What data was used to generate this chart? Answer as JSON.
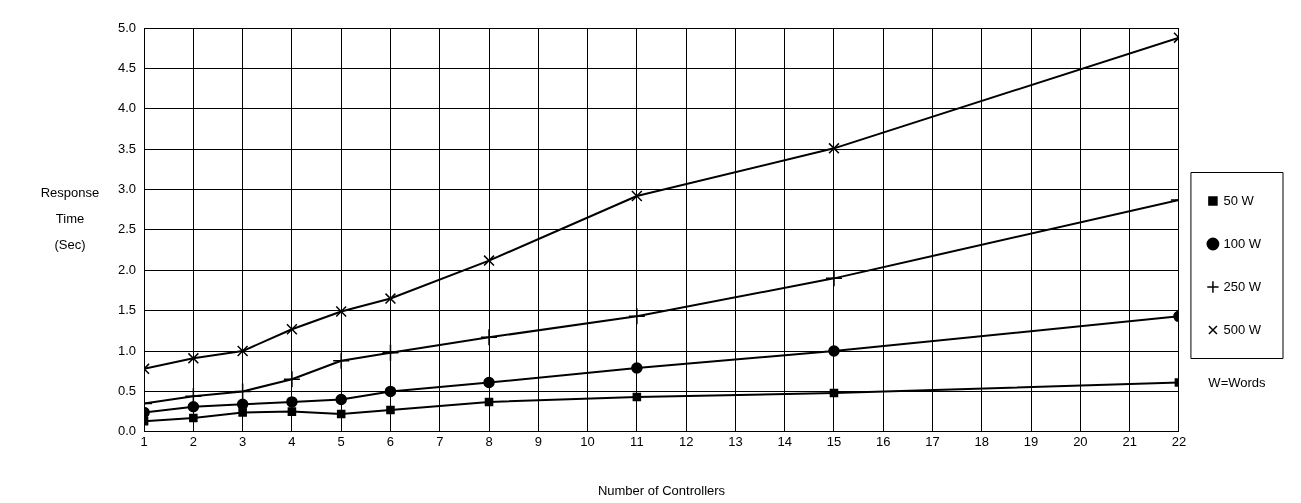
{
  "chart_data": {
    "type": "line",
    "xlabel": "Number of Controllers",
    "ylabel": "Response Time (Sec)",
    "x": [
      1,
      2,
      3,
      4,
      5,
      6,
      8,
      11,
      15,
      22
    ],
    "series": [
      {
        "name": "50 W",
        "color": "#000000",
        "marker": "square",
        "values": [
          0.13,
          0.17,
          0.24,
          0.25,
          0.22,
          0.27,
          0.37,
          0.43,
          0.48,
          0.61
        ]
      },
      {
        "name": "100 W",
        "color": "#000000",
        "marker": "circle",
        "values": [
          0.24,
          0.31,
          0.34,
          0.37,
          0.4,
          0.5,
          0.61,
          0.79,
          1.0,
          1.43
        ]
      },
      {
        "name": "250 W",
        "color": "#000000",
        "marker": "plus",
        "values": [
          0.35,
          0.44,
          0.5,
          0.65,
          0.88,
          0.98,
          1.17,
          1.43,
          1.9,
          2.87
        ]
      },
      {
        "name": "500 W",
        "color": "#000000",
        "marker": "cross",
        "values": [
          0.78,
          0.91,
          1.0,
          1.27,
          1.49,
          1.65,
          2.12,
          2.92,
          3.51,
          4.88
        ]
      }
    ],
    "xlim": [
      1,
      22
    ],
    "xticks": [
      1,
      2,
      3,
      4,
      5,
      6,
      7,
      8,
      9,
      10,
      11,
      12,
      13,
      14,
      15,
      16,
      17,
      18,
      19,
      20,
      21,
      22
    ],
    "ylim": [
      0,
      5
    ],
    "yticks": [
      {
        "value": 0,
        "label": "0.0"
      },
      {
        "value": 0.5,
        "label": "0.5"
      },
      {
        "value": 1,
        "label": "1.0"
      },
      {
        "value": 1.5,
        "label": "1.5"
      },
      {
        "value": 2,
        "label": "2.0"
      },
      {
        "value": 2.5,
        "label": "2.5"
      },
      {
        "value": 3,
        "label": "3.0"
      },
      {
        "value": 3.5,
        "label": "3.5"
      },
      {
        "value": 4,
        "label": "4.0"
      },
      {
        "value": 4.5,
        "label": "4.5"
      },
      {
        "value": 5,
        "label": "5.0"
      }
    ],
    "grid": true,
    "legend": "right",
    "line_style": "solid",
    "annotations": [
      "W=Words"
    ]
  }
}
